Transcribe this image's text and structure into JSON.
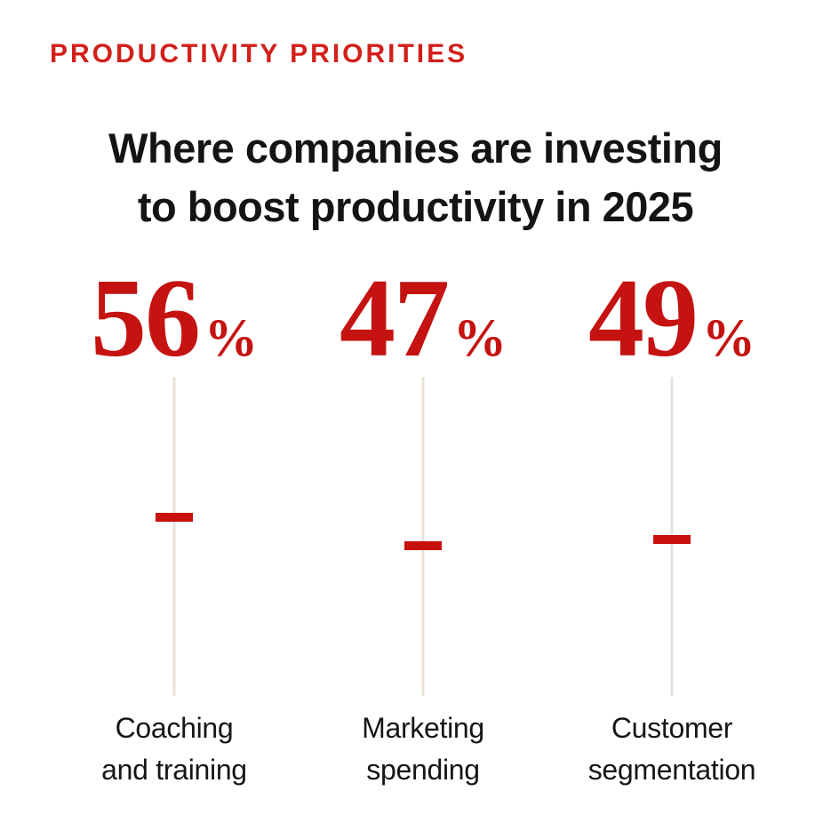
{
  "kicker": {
    "label": "PRODUCTIVITY PRIORITIES"
  },
  "title": {
    "line1": "Where companies are investing",
    "line2": "to boost productivity in 2025"
  },
  "metrics": [
    {
      "value": 56,
      "display": "56",
      "unit": "%",
      "label_line1": "Coaching",
      "label_line2": "and training"
    },
    {
      "value": 47,
      "display": "47",
      "unit": "%",
      "label_line1": "Marketing",
      "label_line2": "spending"
    },
    {
      "value": 49,
      "display": "49",
      "unit": "%",
      "label_line1": "Customer",
      "label_line2": "segmentation"
    }
  ],
  "scale": {
    "min": 0,
    "max": 100
  },
  "colors": {
    "accent_red": "#c41310",
    "tick_red": "#c8110d",
    "kicker_red": "#d2201b",
    "track_beige": "#e8e1da",
    "text_black": "#141414",
    "background": "#ffffff"
  },
  "chart_data": {
    "type": "scatter",
    "kicker": "PRODUCTIVITY PRIORITIES",
    "title": "Where companies are investing to boost productivity in 2025",
    "categories": [
      "Coaching and training",
      "Marketing spending",
      "Customer segmentation"
    ],
    "values": [
      56,
      47,
      49
    ],
    "unit": "%",
    "ylim": [
      0,
      100
    ],
    "marker": "horizontal red tick on vertical beige track (0-100 scale)",
    "grid": false,
    "legend": "none"
  }
}
